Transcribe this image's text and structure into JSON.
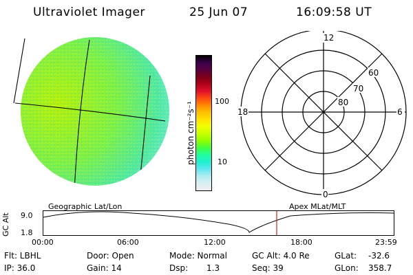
{
  "header": {
    "title": "Ultraviolet Imager",
    "date": "25 Jun 07",
    "time": "16:09:58 UT"
  },
  "colorbar": {
    "unit_label": "photon cm⁻²s⁻¹",
    "ticks": [
      "100",
      "10"
    ],
    "colors": [
      "#000000",
      "#3b004a",
      "#5a0040",
      "#7c0019",
      "#b0001a",
      "#e0102a",
      "#ff4a10",
      "#ff8a00",
      "#ffc000",
      "#ffe000",
      "#f0ff00",
      "#c8ff00",
      "#90ff00",
      "#40ff40",
      "#20ffa0",
      "#20f0d0",
      "#60e8f0",
      "#b0ecf0",
      "#d8f0f4",
      "#eeeeee"
    ]
  },
  "polar": {
    "labels": {
      "top": "12",
      "bottom": "0",
      "left": "18",
      "right": "6"
    },
    "rings": [
      "60",
      "70",
      "80"
    ]
  },
  "timeline": {
    "axis_label": "GC Alt",
    "y_ticks": [
      "9.0",
      "1.8"
    ],
    "left_label": "Geographic Lat/Lon",
    "right_label": "Apex MLat/MLT",
    "x_ticks": [
      "00:00",
      "06:00",
      "12:00",
      "18:00",
      "23:59"
    ]
  },
  "status": {
    "filter": "Flt: LBHL",
    "ip": "IP: 36.0",
    "door": "Door: Open",
    "gain": "Gain: 14",
    "mode": "Mode: Normal",
    "dsp_label": "Dsp:",
    "dsp_value": "1.3",
    "gcalt": "GC Alt: 4.0 Re",
    "seq": "Seq: 39",
    "glat_label": "GLat:",
    "glat_value": "-32.6",
    "glon_label": "GLon:",
    "glon_value": "358.7"
  }
}
